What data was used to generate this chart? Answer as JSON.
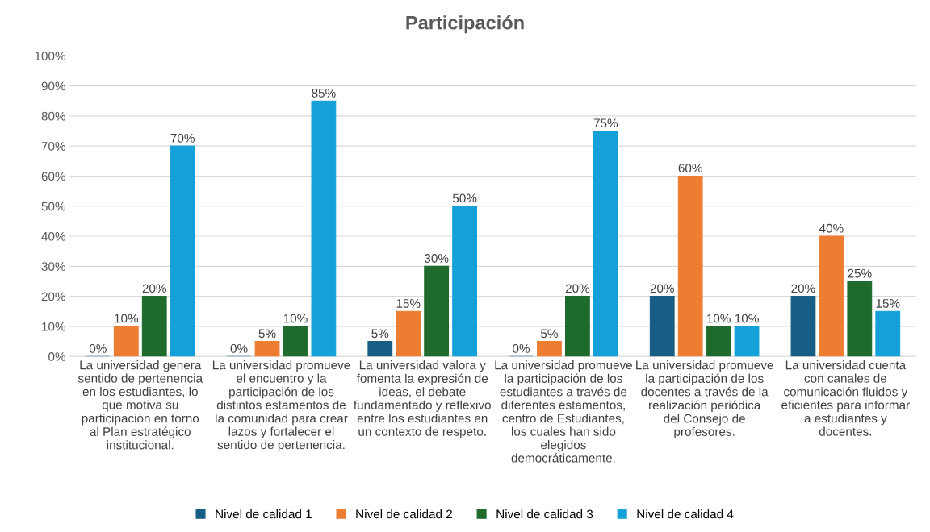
{
  "chart_data": {
    "type": "bar",
    "title": "Participación",
    "categories": [
      "La universidad genera sentido de pertenencia en los estudiantes, lo que motiva su participación en torno al Plan estratégico institucional.",
      "La universidad promueve el encuentro y la participación de los distintos estamentos de la comunidad para crear lazos y fortalecer el sentido de pertenencia.",
      "La universidad valora y fomenta la expresión de ideas, el debate fundamentado y reflexivo entre los estudiantes en un contexto de respeto.",
      "La universidad promueve la participación de los estudiantes a través de diferentes estamentos, centro de Estudiantes, los cuales han sido elegidos democráticamente.",
      "La universidad promueve la participación de los docentes a través de la realización periódica del Consejo de profesores.",
      "La universidad cuenta con canales de comunicación fluidos y eficientes para informar a estudiantes y docentes."
    ],
    "series": [
      {
        "name": "Nivel de calidad 1",
        "color": "#175e84",
        "values": [
          0,
          0,
          5,
          0,
          20,
          20
        ],
        "value_labels": [
          "0%",
          "0%",
          "5%",
          "0%",
          "20%",
          "20%"
        ]
      },
      {
        "name": "Nivel de calidad 2",
        "color": "#ed7d31",
        "values": [
          10,
          5,
          15,
          5,
          60,
          40
        ],
        "value_labels": [
          "10%",
          "5%",
          "15%",
          "5%",
          "60%",
          "40%"
        ]
      },
      {
        "name": "Nivel de calidad 3",
        "color": "#1e6b2c",
        "values": [
          20,
          10,
          30,
          20,
          10,
          25
        ],
        "value_labels": [
          "20%",
          "10%",
          "30%",
          "20%",
          "10%",
          "25%"
        ]
      },
      {
        "name": "Nivel de calidad 4",
        "color": "#14a0d8",
        "values": [
          70,
          85,
          50,
          75,
          10,
          15
        ],
        "value_labels": [
          "70%",
          "85%",
          "50%",
          "75%",
          "10%",
          "15%"
        ]
      }
    ],
    "ylim": [
      0,
      100
    ],
    "yticks": [
      {
        "value": 0,
        "label": "0%"
      },
      {
        "value": 10,
        "label": "10%"
      },
      {
        "value": 20,
        "label": "20%"
      },
      {
        "value": 30,
        "label": "30%"
      },
      {
        "value": 40,
        "label": "40%"
      },
      {
        "value": 50,
        "label": "50%"
      },
      {
        "value": 60,
        "label": "60%"
      },
      {
        "value": 70,
        "label": "70%"
      },
      {
        "value": 80,
        "label": "80%"
      },
      {
        "value": 90,
        "label": "90%"
      },
      {
        "value": 100,
        "label": "100%"
      }
    ],
    "grid": "y",
    "legend": "bottom"
  }
}
